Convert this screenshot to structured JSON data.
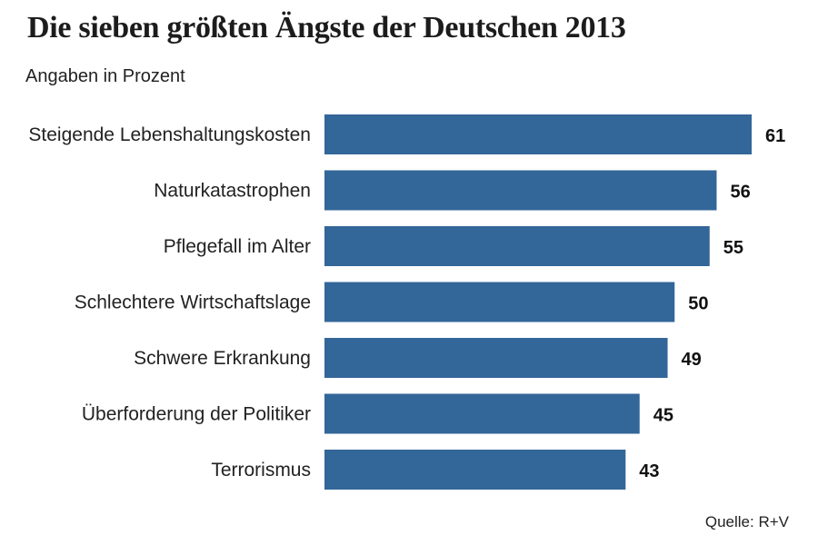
{
  "title": "Die sieben größten Ängste der Deutschen 2013",
  "subtitle": "Angaben in Prozent",
  "source": "Quelle: R+V",
  "colors": {
    "bar": "#336699"
  },
  "chart_data": {
    "type": "bar",
    "orientation": "horizontal",
    "title": "Die sieben größten Ängste der Deutschen 2013",
    "subtitle": "Angaben in Prozent",
    "categories": [
      "Steigende Lebenshaltungskosten",
      "Naturkatastrophen",
      "Pflegefall im Alter",
      "Schlechtere Wirtschaftslage",
      "Schwere Erkrankung",
      "Überforderung der Politiker",
      "Terrorismus"
    ],
    "values": [
      61,
      56,
      55,
      50,
      49,
      45,
      43
    ],
    "data_labels": [
      "61",
      "56",
      "55",
      "50",
      "49",
      "45",
      "43"
    ],
    "xlim": [
      0,
      61
    ],
    "grid": false,
    "legend": false
  }
}
